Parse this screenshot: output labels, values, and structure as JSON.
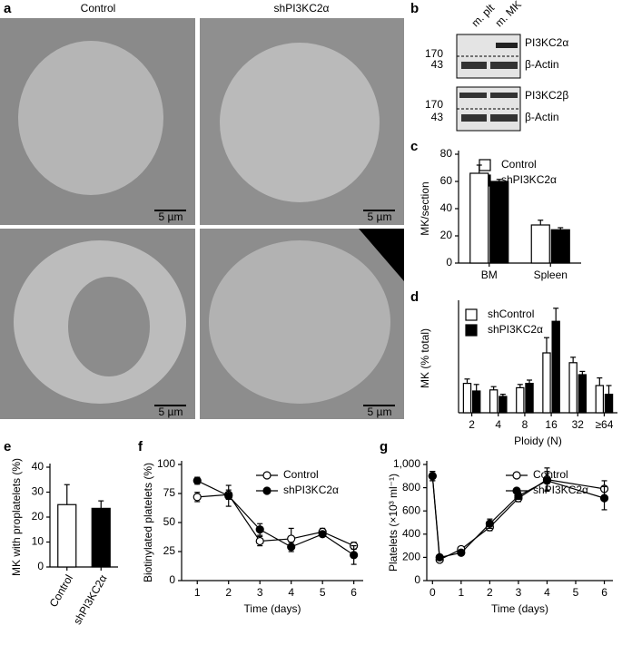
{
  "figure": {
    "a": {
      "label": "a",
      "columns": [
        "Control",
        "shPI3KC2α"
      ],
      "scale_bars": [
        "5 µm",
        "5 µm",
        "5 µm",
        "5 µm"
      ]
    },
    "b": {
      "label": "b",
      "lanes": [
        "m. plt",
        "m. MK"
      ],
      "blots": [
        {
          "markers": [
            "170",
            "43"
          ],
          "bands": [
            "PI3KC2α",
            "β-Actin"
          ]
        },
        {
          "markers": [
            "170",
            "43"
          ],
          "bands": [
            "PI3KC2β",
            "β-Actin"
          ]
        }
      ]
    }
  },
  "chart_data": [
    {
      "type": "bar",
      "label": "c",
      "y_label": "MK/section",
      "categories": [
        "BM",
        "Spleen"
      ],
      "series": [
        {
          "name": "Control",
          "color": "#ffffff",
          "values": [
            66,
            28
          ],
          "errors": [
            6,
            3.5
          ]
        },
        {
          "name": "shPI3KC2α",
          "color": "#000000",
          "values": [
            60,
            24.5
          ],
          "errors": [
            1.5,
            1.5
          ]
        }
      ],
      "ylim": [
        0,
        80
      ],
      "yticks": [
        0,
        20,
        40,
        60,
        80
      ],
      "legend": "upper right"
    },
    {
      "type": "bar",
      "label": "d",
      "y_label": "MK (% total)",
      "x_label": "Ploidy (N)",
      "categories": [
        "2",
        "4",
        "8",
        "16",
        "32",
        "≥64"
      ],
      "series": [
        {
          "name": "shControl",
          "color": "#ffffff",
          "values": [
            13.5,
            10.5,
            11.5,
            27.5,
            23,
            12.5
          ],
          "errors": [
            2,
            1.5,
            1.5,
            7,
            2.5,
            3.5
          ]
        },
        {
          "name": "shPI3KC2α",
          "color": "#000000",
          "values": [
            10,
            7.5,
            13.5,
            42,
            17.5,
            8.5
          ],
          "errors": [
            3,
            1,
            1.5,
            6,
            1.5,
            4
          ]
        }
      ],
      "ylim": [
        0,
        50
      ],
      "legend": "upper left"
    },
    {
      "type": "bar",
      "label": "e",
      "y_label": "MK with proplatelets (%)",
      "categories": [
        "Control",
        "shPI3KC2α"
      ],
      "series": [
        {
          "colors": [
            "#ffffff",
            "#000000"
          ],
          "values": [
            25,
            23.5
          ],
          "errors": [
            8,
            3
          ]
        }
      ],
      "ylim": [
        0,
        40
      ],
      "yticks": [
        0,
        10,
        20,
        30,
        40
      ]
    },
    {
      "type": "line",
      "label": "f",
      "y_label": "Biotinylated platelets (%)",
      "x_label": "Time (days)",
      "x": [
        1,
        2,
        3,
        4,
        5,
        6
      ],
      "series": [
        {
          "name": "Control",
          "color": "#ffffff",
          "values": [
            72,
            74,
            34,
            36,
            42,
            30
          ],
          "errors": [
            4,
            4,
            4,
            9,
            3,
            3
          ]
        },
        {
          "name": "shPI3KC2α",
          "color": "#000000",
          "values": [
            86,
            73,
            44,
            29,
            40,
            22
          ],
          "errors": [
            3,
            9,
            5,
            4,
            2,
            8
          ]
        }
      ],
      "xlim": [
        0.5,
        6.3
      ],
      "xticks": [
        1,
        2,
        3,
        4,
        5,
        6
      ],
      "ylim": [
        0,
        100
      ],
      "yticks": [
        0,
        25,
        50,
        75,
        100
      ],
      "legend": "upper right"
    },
    {
      "type": "line",
      "label": "g",
      "y_label": "Platelets (×10³ ml⁻¹)",
      "x_label": "Time (days)",
      "x": [
        0,
        0.25,
        1,
        2,
        3,
        4,
        6
      ],
      "series": [
        {
          "name": "Control",
          "color": "#ffffff",
          "values": [
            900,
            180,
            270,
            460,
            710,
            870,
            790
          ],
          "errors": [
            40,
            20,
            20,
            30,
            30,
            100,
            70
          ]
        },
        {
          "name": "shPI3KC2α",
          "color": "#000000",
          "values": [
            900,
            200,
            240,
            490,
            730,
            860,
            710
          ],
          "errors": [
            40,
            20,
            20,
            40,
            30,
            80,
            100
          ]
        }
      ],
      "xlim": [
        -0.2,
        6.3
      ],
      "xticks": [
        0,
        1,
        2,
        3,
        4,
        5,
        6
      ],
      "ylim": [
        0,
        1000
      ],
      "yticks": [
        0,
        200,
        400,
        600,
        800,
        {
          "value": 1000,
          "label": "1,000"
        }
      ],
      "legend": "upper right"
    }
  ]
}
